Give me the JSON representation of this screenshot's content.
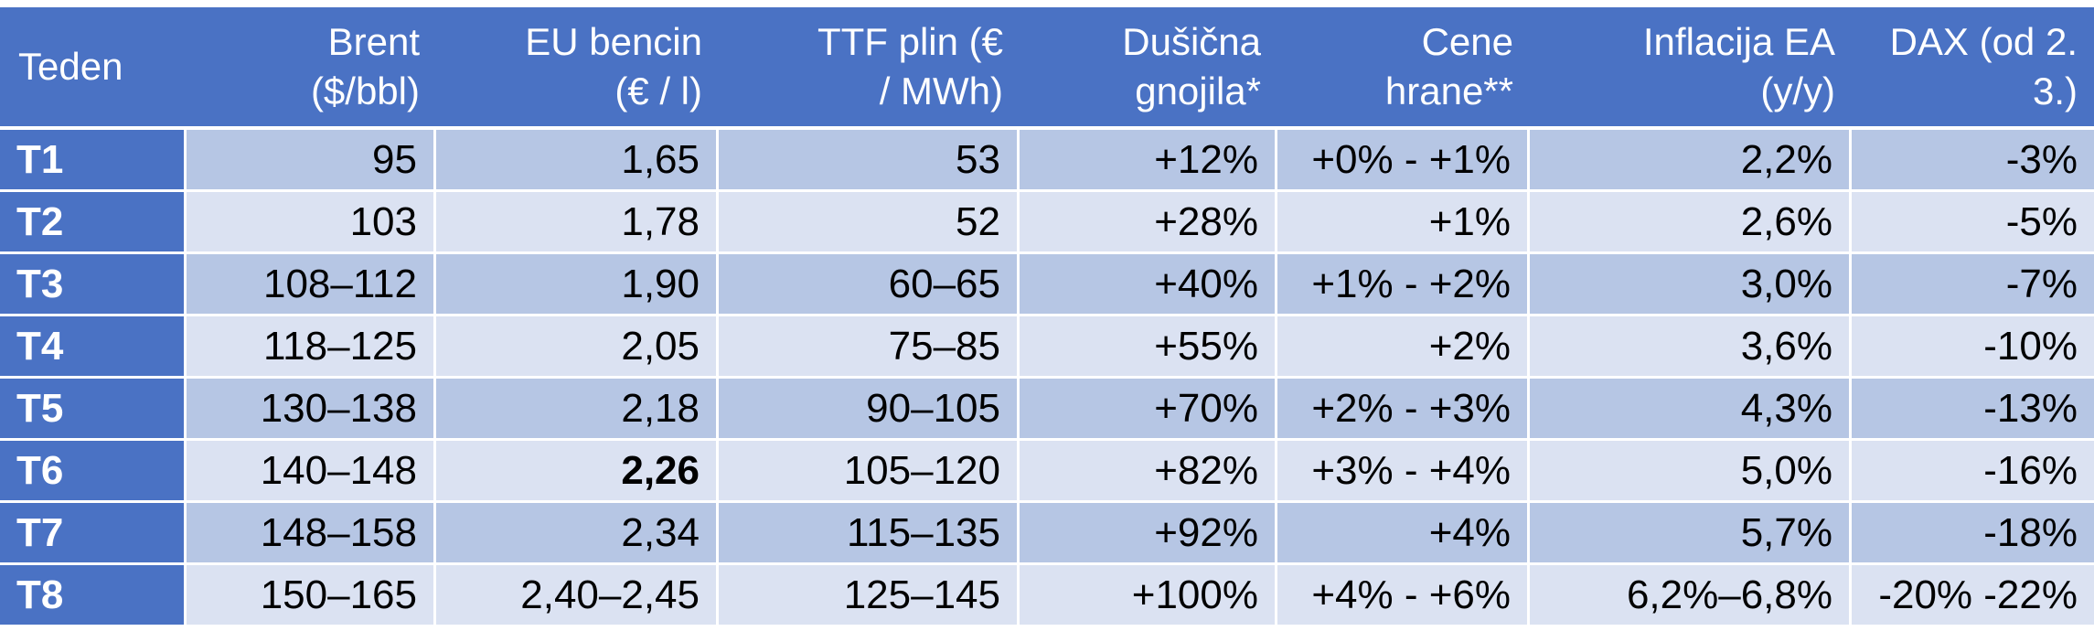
{
  "colors": {
    "header_bg": "#4A72C4",
    "first_column_bg": "#4A72C4",
    "row_dark_bg": "#B6C6E4",
    "row_light_bg": "#DBE2F2",
    "grid_line": "#FFFFFF",
    "header_text": "#FFFFFF",
    "data_text": "#000000"
  },
  "table": {
    "header": [
      {
        "line1": "Teden",
        "line2": ""
      },
      {
        "line1": "Brent",
        "line2": "($/bbl)"
      },
      {
        "line1": "EU bencin",
        "line2": "(€ / l)"
      },
      {
        "line1": "TTF plin (€",
        "line2": "/ MWh)"
      },
      {
        "line1": "Dušična",
        "line2": "gnojila*"
      },
      {
        "line1": "Cene",
        "line2": "hrane**"
      },
      {
        "line1": "Inflacija EA",
        "line2": "(y/y)"
      },
      {
        "line1": "DAX (od 2.",
        "line2": "3.)"
      }
    ],
    "rows": [
      {
        "cells": [
          "T1",
          "95",
          "1,65",
          "53",
          "+12%",
          "+0% - +1%",
          "2,2%",
          "-3%"
        ]
      },
      {
        "cells": [
          "T2",
          "103",
          "1,78",
          "52",
          "+28%",
          "+1%",
          "2,6%",
          "-5%"
        ]
      },
      {
        "cells": [
          "T3",
          "108–112",
          "1,90",
          "60–65",
          "+40%",
          "+1% - +2%",
          "3,0%",
          "-7%"
        ]
      },
      {
        "cells": [
          "T4",
          "118–125",
          "2,05",
          "75–85",
          "+55%",
          "+2%",
          "3,6%",
          "-10%"
        ]
      },
      {
        "cells": [
          "T5",
          "130–138",
          "2,18",
          "90–105",
          "+70%",
          "+2% - +3%",
          "4,3%",
          "-13%"
        ]
      },
      {
        "cells": [
          "T6",
          "140–148",
          "2,26",
          "105–120",
          "+82%",
          "+3% - +4%",
          "5,0%",
          "-16%"
        ]
      },
      {
        "cells": [
          "T7",
          "148–158",
          "2,34",
          "115–135",
          "+92%",
          "+4%",
          "5,7%",
          "-18%"
        ]
      },
      {
        "cells": [
          "T8",
          "150–165",
          "2,40–2,45",
          "125–145",
          "+100%",
          "+4% - +6%",
          "6,2%–6,8%",
          "-20% -22%"
        ]
      }
    ]
  },
  "chart_data": {
    "type": "table",
    "title": "",
    "columns": [
      "Teden",
      "Brent ($/bbl)",
      "EU bencin (€ / l)",
      "TTF plin (€ / MWh)",
      "Dušična gnojila*",
      "Cene hrane**",
      "Inflacija EA (y/y)",
      "DAX (od 2. 3.)"
    ],
    "rows": [
      [
        "T1",
        "95",
        "1,65",
        "53",
        "+12%",
        "+0% - +1%",
        "2,2%",
        "-3%"
      ],
      [
        "T2",
        "103",
        "1,78",
        "52",
        "+28%",
        "+1%",
        "2,6%",
        "-5%"
      ],
      [
        "T3",
        "108–112",
        "1,90",
        "60–65",
        "+40%",
        "+1% - +2%",
        "3,0%",
        "-7%"
      ],
      [
        "T4",
        "118–125",
        "2,05",
        "75–85",
        "+55%",
        "+2%",
        "3,6%",
        "-10%"
      ],
      [
        "T5",
        "130–138",
        "2,18",
        "90–105",
        "+70%",
        "+2% - +3%",
        "4,3%",
        "-13%"
      ],
      [
        "T6",
        "140–148",
        "2,26",
        "105–120",
        "+82%",
        "+3% - +4%",
        "5,0%",
        "-16%"
      ],
      [
        "T7",
        "148–158",
        "2,34",
        "115–135",
        "+92%",
        "+4%",
        "5,7%",
        "-18%"
      ],
      [
        "T8",
        "150–165",
        "2,40–2,45",
        "125–145",
        "+100%",
        "+4% - +6%",
        "6,2%–6,8%",
        "-20% -22%"
      ]
    ],
    "emphasized_cell": {
      "row": "T6",
      "column": "EU bencin (€ / l)",
      "value": "2,26",
      "style": "bold"
    },
    "layout": {
      "header_fill": "#4A72C4",
      "alternating_row_fills": [
        "#B6C6E4",
        "#DBE2F2"
      ],
      "gridlines": "white"
    }
  }
}
